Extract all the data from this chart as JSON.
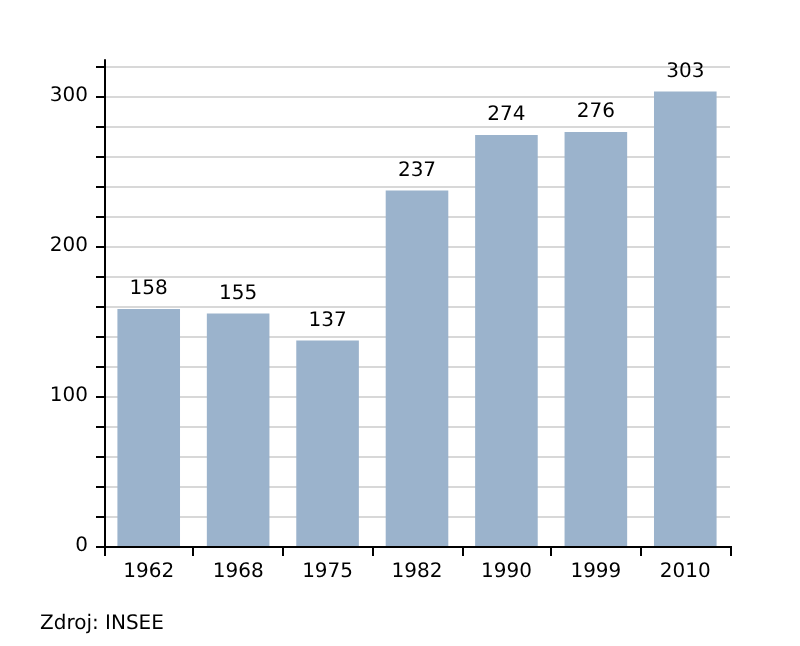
{
  "chart_data": {
    "type": "bar",
    "categories": [
      "1962",
      "1968",
      "1975",
      "1982",
      "1990",
      "1999",
      "2010"
    ],
    "values": [
      158,
      155,
      137,
      237,
      274,
      276,
      303
    ],
    "color": "#9bb3cc",
    "data_labels": true,
    "ylim": [
      0,
      324
    ],
    "yticks": [
      0,
      {
        "value": 20,
        "label": null
      },
      {
        "value": 40,
        "label": null
      },
      {
        "value": 60,
        "label": null
      },
      {
        "value": 80,
        "label": null
      },
      100,
      {
        "value": 120,
        "label": null
      },
      {
        "value": 140,
        "label": null
      },
      {
        "value": 160,
        "label": null
      },
      {
        "value": 180,
        "label": null
      },
      200,
      {
        "value": 220,
        "label": null
      },
      {
        "value": 240,
        "label": null
      },
      {
        "value": 260,
        "label": null
      },
      {
        "value": 280,
        "label": null
      },
      300,
      {
        "value": 320,
        "label": null
      }
    ],
    "grid": "y",
    "annotations": [
      "Zdroj: INSEE"
    ]
  }
}
